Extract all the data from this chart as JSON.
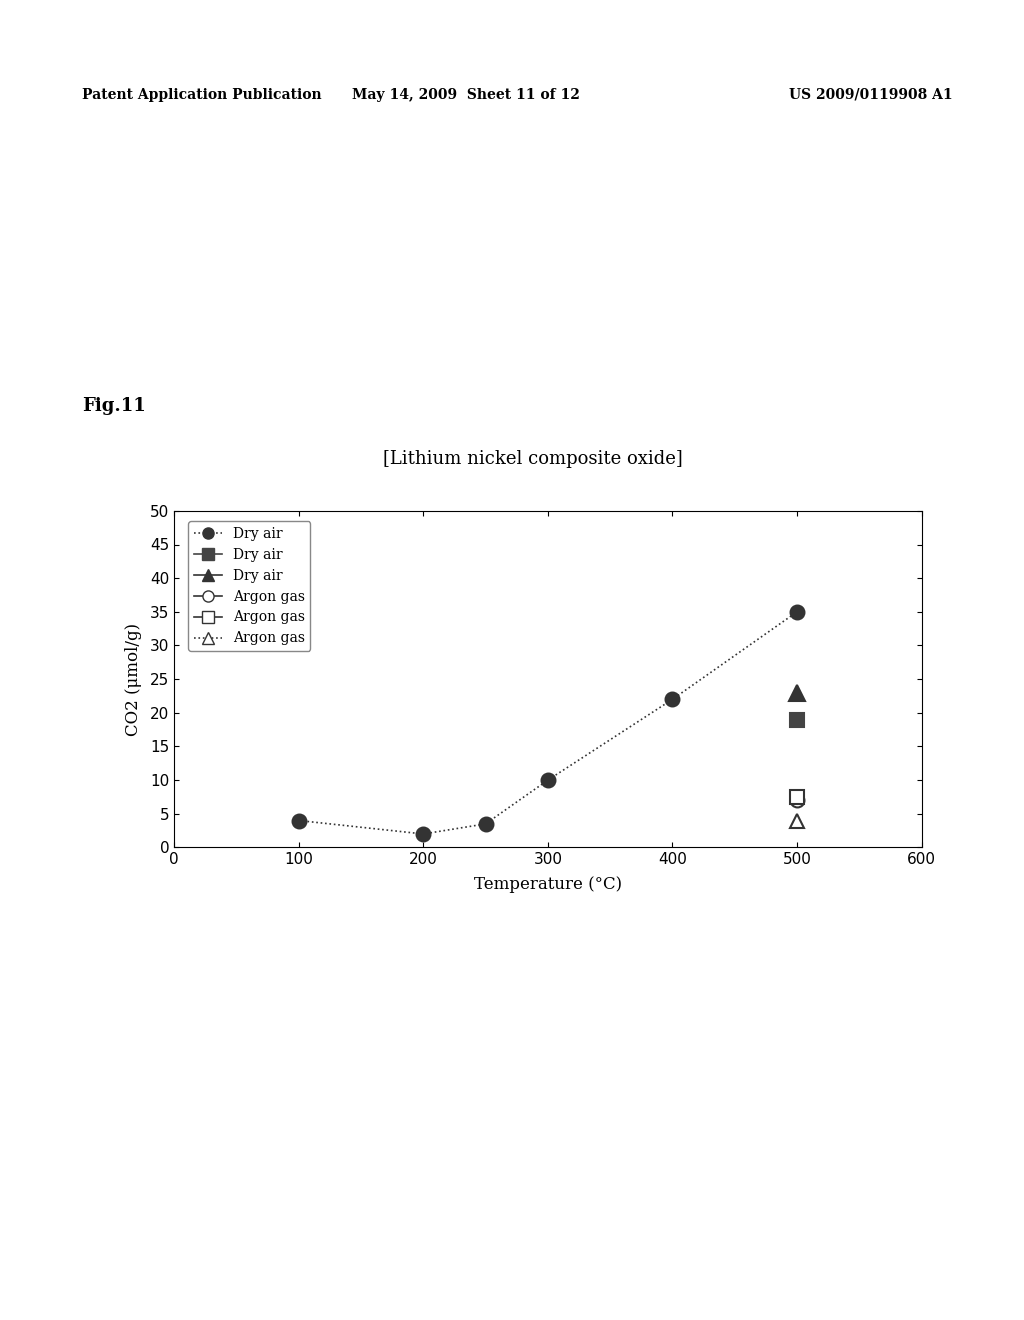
{
  "title": "[Lithium nickel composite oxide]",
  "xlabel": "Temperature (°C)",
  "ylabel": "CO2 (μmol/g)",
  "fig_label": "Fig.11",
  "header_left": "Patent Application Publication",
  "header_mid": "May 14, 2009  Sheet 11 of 12",
  "header_right": "US 2009/0119908 A1",
  "xlim": [
    0,
    600
  ],
  "ylim": [
    0,
    50
  ],
  "xticks": [
    0,
    100,
    200,
    300,
    400,
    500,
    600
  ],
  "yticks": [
    0,
    5,
    10,
    15,
    20,
    25,
    30,
    35,
    40,
    45,
    50
  ],
  "series": [
    {
      "label": "Dry air",
      "x": [
        100,
        200,
        250,
        300,
        400,
        500
      ],
      "y": [
        4.0,
        2.0,
        3.5,
        10.0,
        22.0,
        35.0
      ],
      "marker": "o",
      "marker_filled": true,
      "linestyle": "dotted",
      "color": "#333333",
      "markersize": 10,
      "linewidth": 1.2
    },
    {
      "label": "Dry air",
      "x": [
        500
      ],
      "y": [
        19.0
      ],
      "marker": "s",
      "marker_filled": true,
      "linestyle": "none",
      "color": "#444444",
      "markersize": 10,
      "linewidth": 1.2
    },
    {
      "label": "Dry air",
      "x": [
        500
      ],
      "y": [
        23.0
      ],
      "marker": "^",
      "marker_filled": true,
      "linestyle": "none",
      "color": "#333333",
      "markersize": 11,
      "linewidth": 1.2
    },
    {
      "label": "Argon gas",
      "x": [
        500
      ],
      "y": [
        7.0
      ],
      "marker": "o",
      "marker_filled": false,
      "linestyle": "none",
      "color": "#333333",
      "markersize": 10,
      "linewidth": 1.2
    },
    {
      "label": "Argon gas",
      "x": [
        500
      ],
      "y": [
        7.5
      ],
      "marker": "s",
      "marker_filled": false,
      "linestyle": "none",
      "color": "#333333",
      "markersize": 10,
      "linewidth": 1.2
    },
    {
      "label": "Argon gas",
      "x": [
        500
      ],
      "y": [
        4.0
      ],
      "marker": "^",
      "marker_filled": false,
      "linestyle": "none",
      "color": "#333333",
      "markersize": 10,
      "linewidth": 1.2
    }
  ],
  "background_color": "#ffffff",
  "plot_bg_color": "#ffffff",
  "title_fontsize": 13,
  "axis_fontsize": 12,
  "tick_fontsize": 11,
  "legend_fontsize": 10
}
